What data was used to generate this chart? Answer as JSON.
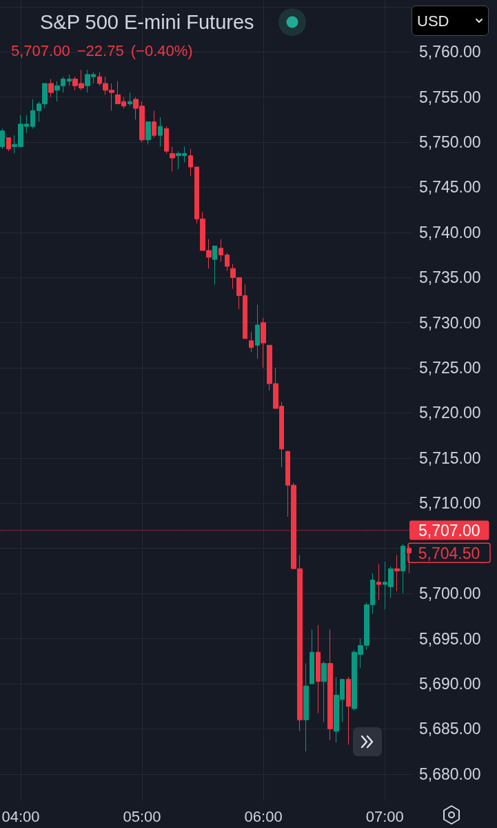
{
  "chart_data": {
    "type": "candlestick",
    "title": "S&P 500 E-mini Futures",
    "subtitle": "5,707.00 −22.75 (−0.40%)",
    "x": [
      3.85,
      3.9,
      3.95,
      4,
      4.05,
      4.1,
      4.15,
      4.2,
      4.25,
      4.3,
      4.35,
      4.4,
      4.45,
      4.5,
      4.55,
      4.6,
      4.65,
      4.7,
      4.75,
      4.8,
      4.85,
      4.9,
      4.95,
      5,
      5.05,
      5.1,
      5.15,
      5.2,
      5.25,
      5.3,
      5.35,
      5.4,
      5.45,
      5.5,
      5.55,
      5.6,
      5.65,
      5.7,
      5.75,
      5.8,
      5.85,
      5.9,
      5.95,
      6,
      6.05,
      6.1,
      6.15,
      6.2,
      6.25,
      6.3,
      6.35,
      6.4,
      6.45,
      6.5,
      6.55,
      6.6,
      6.65,
      6.7,
      6.75,
      6.8,
      6.85,
      6.9,
      6.95,
      7,
      7.05,
      7.1,
      7.15,
      7.2
    ],
    "ohlc": [
      [
        5749.5,
        5751.5,
        5749.25,
        5751.25
      ],
      [
        5750.5,
        5750.5,
        5749,
        5749.25
      ],
      [
        5749.5,
        5750.75,
        5748.75,
        5749.75
      ],
      [
        5749.5,
        5753,
        5749.5,
        5752
      ],
      [
        5751.75,
        5753,
        5751,
        5752
      ],
      [
        5751.75,
        5754.75,
        5751.5,
        5753.5
      ],
      [
        5753.5,
        5754.5,
        5752.25,
        5754.25
      ],
      [
        5754.25,
        5756.5,
        5753.75,
        5756.5
      ],
      [
        5756.5,
        5757,
        5755,
        5755.5
      ],
      [
        5755.75,
        5756.75,
        5754.5,
        5756.25
      ],
      [
        5756.25,
        5757.25,
        5755.5,
        5757
      ],
      [
        5756.75,
        5757.5,
        5756.25,
        5757
      ],
      [
        5757,
        5757.25,
        5755.75,
        5756.25
      ],
      [
        5756.5,
        5758,
        5755.75,
        5756
      ],
      [
        5756.25,
        5758,
        5755.5,
        5757.5
      ],
      [
        5757.25,
        5757.75,
        5756.5,
        5757.5
      ],
      [
        5757.25,
        5757.75,
        5756.25,
        5756.5
      ],
      [
        5756.5,
        5757.25,
        5755.25,
        5755.75
      ],
      [
        5755.75,
        5756.5,
        5753.5,
        5755.5
      ],
      [
        5755.25,
        5756.75,
        5754.25,
        5754.25
      ],
      [
        5754.5,
        5755,
        5753.75,
        5754
      ],
      [
        5754.25,
        5755.5,
        5754,
        5754.5
      ],
      [
        5754.75,
        5755,
        5752.5,
        5753.75
      ],
      [
        5754,
        5754.5,
        5750,
        5750.25
      ],
      [
        5750.25,
        5752.25,
        5749.75,
        5752.25
      ],
      [
        5752.25,
        5753.5,
        5750.5,
        5750.75
      ],
      [
        5750.75,
        5752.75,
        5749.5,
        5751.75
      ],
      [
        5751.5,
        5751.75,
        5748.75,
        5749
      ],
      [
        5748.75,
        5749.5,
        5746.75,
        5748.25
      ],
      [
        5748.5,
        5749,
        5747,
        5748.75
      ],
      [
        5748.5,
        5749.5,
        5747.75,
        5748.75
      ],
      [
        5748.5,
        5749.25,
        5746.25,
        5747.25
      ],
      [
        5747.25,
        5747.25,
        5741,
        5741.5
      ],
      [
        5741.5,
        5742.25,
        5738,
        5738
      ],
      [
        5738,
        5739.25,
        5736,
        5737.25
      ],
      [
        5737,
        5738.5,
        5734.25,
        5738.5
      ],
      [
        5738.25,
        5739.25,
        5736.75,
        5737.5
      ],
      [
        5737.5,
        5737.75,
        5735.75,
        5736.25
      ],
      [
        5736,
        5736.5,
        5733.75,
        5735
      ],
      [
        5735,
        5735,
        5731.5,
        5733
      ],
      [
        5733,
        5734.25,
        5728.25,
        5728.25
      ],
      [
        5728,
        5729,
        5726.75,
        5727.25
      ],
      [
        5727.5,
        5732,
        5726,
        5729.75
      ],
      [
        5730,
        5730.5,
        5725,
        5727.75
      ],
      [
        5727.5,
        5727.5,
        5722.5,
        5723.25
      ],
      [
        5723.25,
        5725,
        5720.5,
        5720.5
      ],
      [
        5720.75,
        5721.25,
        5714,
        5716
      ],
      [
        5715.75,
        5715.75,
        5708.5,
        5712
      ],
      [
        5712,
        5712.25,
        5702.75,
        5702.75
      ],
      [
        5702.75,
        5704.25,
        5684.75,
        5686
      ],
      [
        5686,
        5692.25,
        5682.5,
        5689.75
      ],
      [
        5690,
        5696,
        5690,
        5693.5
      ],
      [
        5693.5,
        5696.5,
        5686.75,
        5690.25
      ],
      [
        5690.25,
        5692.5,
        5685.75,
        5692.25
      ],
      [
        5692.25,
        5696,
        5683.75,
        5685
      ],
      [
        5684.75,
        5690.75,
        5683.5,
        5688.75
      ],
      [
        5688.25,
        5690.5,
        5685.75,
        5690.5
      ],
      [
        5690.5,
        5690.75,
        5683.25,
        5687.5
      ],
      [
        5687.25,
        5693.75,
        5687,
        5693.5
      ],
      [
        5693.25,
        5695,
        5691.75,
        5694.25
      ],
      [
        5694.25,
        5699,
        5693.75,
        5698.75
      ],
      [
        5698.75,
        5702.25,
        5697.75,
        5701.5
      ],
      [
        5701.25,
        5703.25,
        5699.25,
        5701
      ],
      [
        5701,
        5703.5,
        5698.25,
        5701.25
      ],
      [
        5700.75,
        5703,
        5699.5,
        5702.75
      ],
      [
        5702.75,
        5704.25,
        5700.25,
        5702.5
      ],
      [
        5702.5,
        5705.5,
        5700,
        5705.25
      ],
      [
        5705,
        5705.25,
        5702.25,
        5704.5
      ]
    ],
    "colors": [
      "#089981",
      "#f23645",
      "#089981",
      "#089981",
      "#089981",
      "#089981",
      "#089981",
      "#089981",
      "#f23645",
      "#089981",
      "#089981",
      "#089981",
      "#f23645",
      "#f23645",
      "#089981",
      "#089981",
      "#f23645",
      "#f23645",
      "#f23645",
      "#f23645",
      "#f23645",
      "#089981",
      "#f23645",
      "#f23645",
      "#089981",
      "#f23645",
      "#089981",
      "#f23645",
      "#f23645",
      "#089981",
      "#089981",
      "#f23645",
      "#f23645",
      "#f23645",
      "#f23645",
      "#089981",
      "#f23645",
      "#f23645",
      "#f23645",
      "#f23645",
      "#f23645",
      "#f23645",
      "#089981",
      "#f23645",
      "#f23645",
      "#f23645",
      "#f23645",
      "#f23645",
      "#f23645",
      "#f23645",
      "#089981",
      "#089981",
      "#f23645",
      "#089981",
      "#f23645",
      "#089981",
      "#089981",
      "#f23645",
      "#089981",
      "#089981",
      "#089981",
      "#089981",
      "#f23645",
      "#089981",
      "#089981",
      "#f23645",
      "#089981",
      "#f23645"
    ],
    "xlim": [
      3.83,
      7.22
    ],
    "xticks": [
      {
        "value": 4,
        "label": "04:00"
      },
      {
        "value": 5,
        "label": "05:00"
      },
      {
        "value": 6,
        "label": "06:00"
      },
      {
        "value": 7,
        "label": "07:00"
      }
    ],
    "ylim": [
      5677,
      5765.75
    ],
    "yticks": [
      {
        "value": 5680,
        "label": "5,680.00"
      },
      {
        "value": 5685,
        "label": "5,685.00"
      },
      {
        "value": 5690,
        "label": "5,690.00"
      },
      {
        "value": 5695,
        "label": "5,695.00"
      },
      {
        "value": 5700,
        "label": "5,700.00"
      },
      {
        "value": 5705,
        "label": null
      },
      {
        "value": 5710,
        "label": "5,710.00"
      },
      {
        "value": 5715,
        "label": "5,715.00"
      },
      {
        "value": 5720,
        "label": "5,720.00"
      },
      {
        "value": 5725,
        "label": "5,725.00"
      },
      {
        "value": 5730,
        "label": "5,730.00"
      },
      {
        "value": 5735,
        "label": "5,735.00"
      },
      {
        "value": 5740,
        "label": "5,740.00"
      },
      {
        "value": 5745,
        "label": "5,745.00"
      },
      {
        "value": 5750,
        "label": "5,750.00"
      },
      {
        "value": 5755,
        "label": "5,755.00"
      },
      {
        "value": 5760,
        "label": "5,760.00"
      },
      {
        "value": 5765,
        "label": null
      }
    ],
    "grid": true,
    "ref_lines": [
      {
        "axis": "y",
        "value": 5707,
        "label": "5,707.00",
        "color": "#f23645",
        "line_style": "dotted"
      }
    ],
    "annotations": [
      "USD",
      "5,704.50"
    ]
  }
}
